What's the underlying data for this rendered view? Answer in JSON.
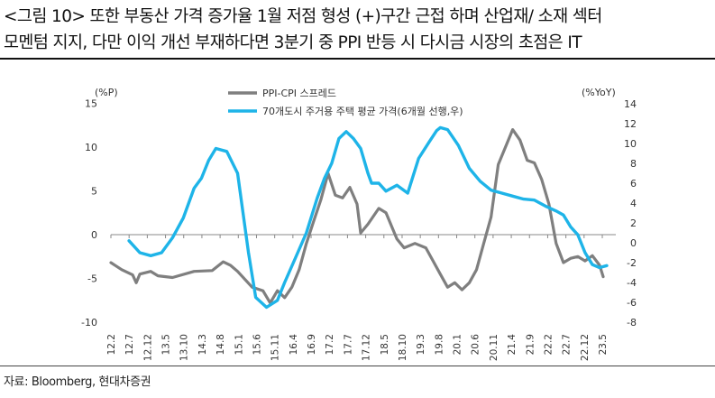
{
  "figure": {
    "title_line1": "<그림 10> 또한 부동산 가격 증가율 1월 저점 형성 (+)구간 근접 하며 산업재/ 소재 섹터",
    "title_line2": "모멘텀 지지, 다만 이익 개선 부재하다면 3분기 중 PPI 반등 시 다시금 시장의 초점은 IT",
    "source": "자료: Bloomberg, 현대차증권"
  },
  "colors": {
    "spread": "#7f7f7f",
    "housing": "#1eb4e8",
    "axis": "#888888",
    "text": "#333333"
  },
  "chart_data": {
    "type": "line",
    "y_left_label": "(%P)",
    "y_right_label": "(%YoY)",
    "y_left_range": [
      -10,
      15
    ],
    "y_left_ticks": [
      "15",
      "10",
      "5",
      "0",
      "-5",
      "-10"
    ],
    "y_right_range": [
      -8,
      14
    ],
    "y_right_ticks": [
      "14",
      "12",
      "10",
      "8",
      "6",
      "4",
      "2",
      "0",
      "-2",
      "-4",
      "-6",
      "-8"
    ],
    "x_ticks": [
      "12.2",
      "12.7",
      "12.12",
      "13.5",
      "13.10",
      "14.3",
      "14.8",
      "15.1",
      "15.6",
      "15.11",
      "16.4",
      "16.9",
      "17.2",
      "17.7",
      "17.12",
      "18.5",
      "18.10",
      "19.3",
      "19.8",
      "20.1",
      "20.6",
      "20.11",
      "21.4",
      "21.9",
      "22.2",
      "22.7",
      "22.12",
      "23.5"
    ],
    "legend_position": "top-center",
    "grid": false,
    "series": [
      {
        "name": "PPI-CPI 스프레드",
        "axis": "left",
        "x": [
          "2012-02",
          "2012-05",
          "2012-08",
          "2012-09",
          "2012-10",
          "2013-01",
          "2013-03",
          "2013-07",
          "2014-01",
          "2014-06",
          "2014-09",
          "2014-11",
          "2015-01",
          "2015-05",
          "2015-08",
          "2015-10",
          "2015-12",
          "2016-02",
          "2016-04",
          "2016-06",
          "2016-08",
          "2016-10",
          "2016-12",
          "2017-02",
          "2017-04",
          "2017-06",
          "2017-08",
          "2017-10",
          "2017-11",
          "2018-01",
          "2018-04",
          "2018-06",
          "2018-09",
          "2018-11",
          "2019-02",
          "2019-05",
          "2019-07",
          "2019-09",
          "2019-11",
          "2020-01",
          "2020-03",
          "2020-05",
          "2020-07",
          "2020-09",
          "2020-11",
          "2021-01",
          "2021-03",
          "2021-05",
          "2021-07",
          "2021-09",
          "2021-11",
          "2022-01",
          "2022-03",
          "2022-05",
          "2022-07",
          "2022-09",
          "2022-11",
          "2023-01",
          "2023-03",
          "2023-05",
          "2023-06"
        ],
        "values": [
          -3.2,
          -4.0,
          -4.6,
          -5.5,
          -4.5,
          -4.2,
          -4.7,
          -4.9,
          -4.2,
          -4.1,
          -3.1,
          -3.5,
          -4.2,
          -6.0,
          -6.4,
          -7.8,
          -6.4,
          -7.2,
          -6.0,
          -4.0,
          -1.0,
          1.5,
          4.0,
          7.0,
          4.5,
          4.2,
          5.4,
          3.5,
          0.2,
          1.2,
          3.0,
          2.5,
          -0.5,
          -1.5,
          -1.0,
          -1.5,
          -3.0,
          -4.5,
          -6.0,
          -5.5,
          -6.3,
          -5.5,
          -4.0,
          -1.0,
          2.0,
          8.0,
          10.0,
          12.0,
          10.8,
          8.5,
          8.2,
          6.3,
          3.5,
          -1.0,
          -3.2,
          -2.7,
          -2.5,
          -3.0,
          -2.4,
          -3.5,
          -4.8
        ]
      },
      {
        "name": "70개도시 주거용 주택 평균 가격(6개월 선행,우)",
        "axis": "right",
        "x": [
          "2012-07",
          "2012-10",
          "2013-01",
          "2013-04",
          "2013-07",
          "2013-10",
          "2014-01",
          "2014-03",
          "2014-05",
          "2014-07",
          "2014-10",
          "2015-01",
          "2015-04",
          "2015-06",
          "2015-09",
          "2015-12",
          "2016-02",
          "2016-05",
          "2016-08",
          "2016-11",
          "2017-01",
          "2017-03",
          "2017-05",
          "2017-07",
          "2017-09",
          "2017-11",
          "2018-01",
          "2018-02",
          "2018-04",
          "2018-06",
          "2018-09",
          "2018-12",
          "2019-03",
          "2019-06",
          "2019-08",
          "2019-09",
          "2019-11",
          "2020-02",
          "2020-05",
          "2020-08",
          "2020-11",
          "2021-02",
          "2021-05",
          "2021-08",
          "2021-11",
          "2022-02",
          "2022-05",
          "2022-07",
          "2022-09",
          "2022-11",
          "2023-01",
          "2023-03",
          "2023-05",
          "2023-07"
        ],
        "values": [
          0.2,
          -1.0,
          -1.3,
          -1.0,
          0.5,
          2.5,
          5.5,
          6.5,
          8.3,
          9.5,
          9.2,
          7.0,
          -1.0,
          -5.5,
          -6.5,
          -5.8,
          -4.0,
          -1.5,
          1.0,
          4.5,
          6.5,
          8.0,
          10.5,
          11.2,
          10.5,
          9.5,
          7.0,
          6.0,
          6.0,
          5.2,
          5.8,
          5.0,
          8.5,
          10.2,
          11.3,
          11.6,
          11.4,
          9.8,
          7.5,
          6.2,
          5.3,
          5.0,
          4.7,
          4.4,
          4.3,
          3.7,
          3.2,
          2.8,
          1.6,
          0.8,
          -1.0,
          -2.2,
          -2.5,
          -2.3
        ]
      }
    ]
  }
}
